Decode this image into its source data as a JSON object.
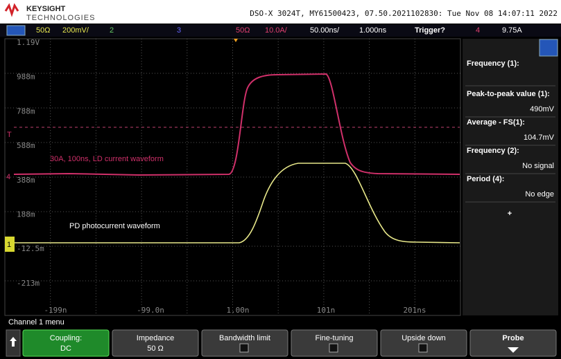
{
  "header": {
    "brand": "KEYSIGHT",
    "sub": "TECHNOLOGIES",
    "info": "DSO-X 3024T, MY61500423, 07.50.2021102830: Tue Nov 08 14:07:11 2022"
  },
  "toolbar": {
    "ch1_imp": "50Ω",
    "ch1_scale": "200mV/",
    "ch2": "2",
    "ch3": "3",
    "ch4_imp": "50Ω",
    "ch4_scale": "10.0A/",
    "timebase": "50.00ns/",
    "delay": "1.000ns",
    "trigger": "Trigger?",
    "trig_ch": "4",
    "trig_level": "9.75A"
  },
  "screen": {
    "ylabels": [
      "1.19V",
      "988m",
      "788m",
      "588m",
      "388m",
      "188m",
      "-12.5m",
      "-213m"
    ],
    "xlabels": [
      "-199n",
      "-99.0n",
      "1.00n",
      "101n",
      "201ns"
    ],
    "annotations": [
      "30A, 100ns, LD current waveform",
      "PD photocurrent waveform"
    ],
    "markers": {
      "trigger": "T",
      "ch4": "4",
      "ch1": "1"
    }
  },
  "panel": {
    "items": [
      {
        "label": "Frequency (1):"
      },
      {
        "label": "Peak-to-peak value (1):",
        "value": "490mV"
      },
      {
        "label": "Average - FS(1):",
        "value": "104.7mV"
      },
      {
        "label": "Frequency (2):",
        "value": "No signal"
      },
      {
        "label": "Period (4):",
        "value": "No edge"
      }
    ],
    "add": "+"
  },
  "menu": {
    "title": "Channel 1 menu",
    "keys": [
      {
        "label": "Coupling:",
        "value": "DC"
      },
      {
        "label": "Impedance",
        "value": "50 Ω"
      },
      {
        "label": "Bandwidth limit"
      },
      {
        "label": "Fine-tuning"
      },
      {
        "label": "Upside down"
      },
      {
        "label": "Probe"
      }
    ]
  }
}
